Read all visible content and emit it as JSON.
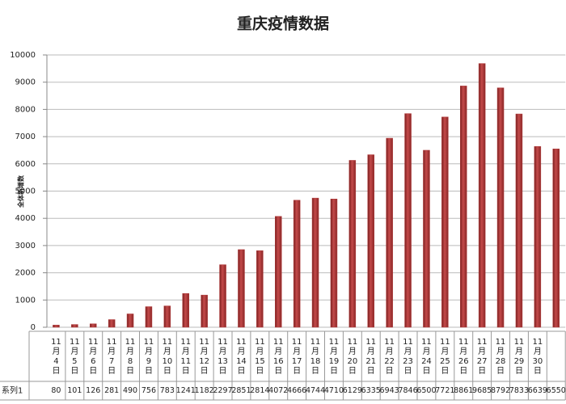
{
  "chart_data": {
    "type": "bar",
    "title": "重庆疫情数据",
    "y_label": "全体新增数",
    "categories": [
      "11月4日",
      "11月5日",
      "11月6日",
      "11月7日",
      "11月8日",
      "11月9日",
      "11月10日",
      "11月11日",
      "11月12日",
      "11月13日",
      "11月14日",
      "11月15日",
      "11月16日",
      "11月17日",
      "11月18日",
      "11月19日",
      "11月20日",
      "11月21日",
      "11月22日",
      "11月23日",
      "11月24日",
      "11月25日",
      "11月26日",
      "11月27日",
      "11月28日",
      "11月29日",
      "11月30日",
      null
    ],
    "series": [
      {
        "name": "系列1",
        "color": "#b23a3a",
        "values": [
          80,
          101,
          126,
          281,
          490,
          756,
          783,
          1241,
          1182,
          2297,
          2851,
          2814,
          4072,
          4666,
          4744,
          4710,
          6129,
          6335,
          6943,
          7846,
          6500,
          7721,
          8861,
          9685,
          8792,
          7833,
          6639,
          6550
        ]
      }
    ],
    "ylim": [
      0,
      10000
    ],
    "yticks": [
      0,
      1000,
      2000,
      3000,
      4000,
      5000,
      6000,
      7000,
      8000,
      9000,
      10000
    ],
    "grid": true
  }
}
